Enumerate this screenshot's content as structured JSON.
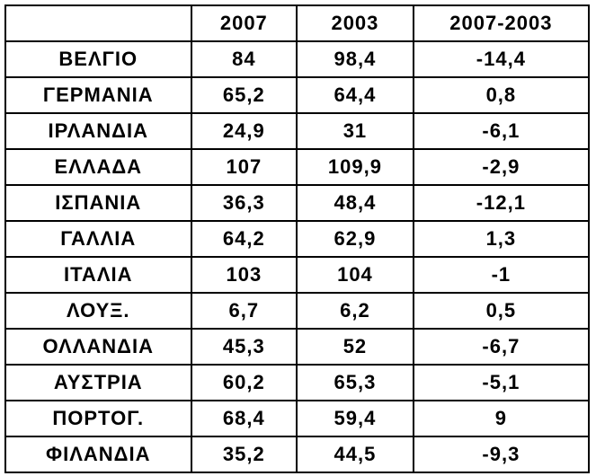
{
  "table": {
    "header": [
      "2007",
      "2003",
      "2007-2003"
    ],
    "rows": [
      [
        "ΒΕΛΓΙΟ",
        "84",
        "98,4",
        "-14,4"
      ],
      [
        "ΓΕΡΜΑΝΙΑ",
        "65,2",
        "64,4",
        "0,8"
      ],
      [
        "ΙΡΛΑΝΔΙΑ",
        "24,9",
        "31",
        "-6,1"
      ],
      [
        "ΕΛΛΑΔΑ",
        "107",
        "109,9",
        "-2,9"
      ],
      [
        "ΙΣΠΑΝΙΑ",
        "36,3",
        "48,4",
        "-12,1"
      ],
      [
        "ΓΑΛΛΙΑ",
        "64,2",
        "62,9",
        "1,3"
      ],
      [
        "ΙΤΑΛΙΑ",
        "103",
        "104",
        "-1"
      ],
      [
        "ΛΟΥΞ.",
        "6,7",
        "6,2",
        "0,5"
      ],
      [
        "ΟΛΛΑΝΔΙΑ",
        "45,3",
        "52",
        "-6,7"
      ],
      [
        "ΑΥΣΤΡΙΑ",
        "60,2",
        "65,3",
        "-5,1"
      ],
      [
        "ΠΟΡΤΟΓ.",
        "68,4",
        "59,4",
        "9"
      ],
      [
        "ΦΙΛΑΝΔΙΑ",
        "35,2",
        "44,5",
        "-9,3"
      ]
    ]
  }
}
